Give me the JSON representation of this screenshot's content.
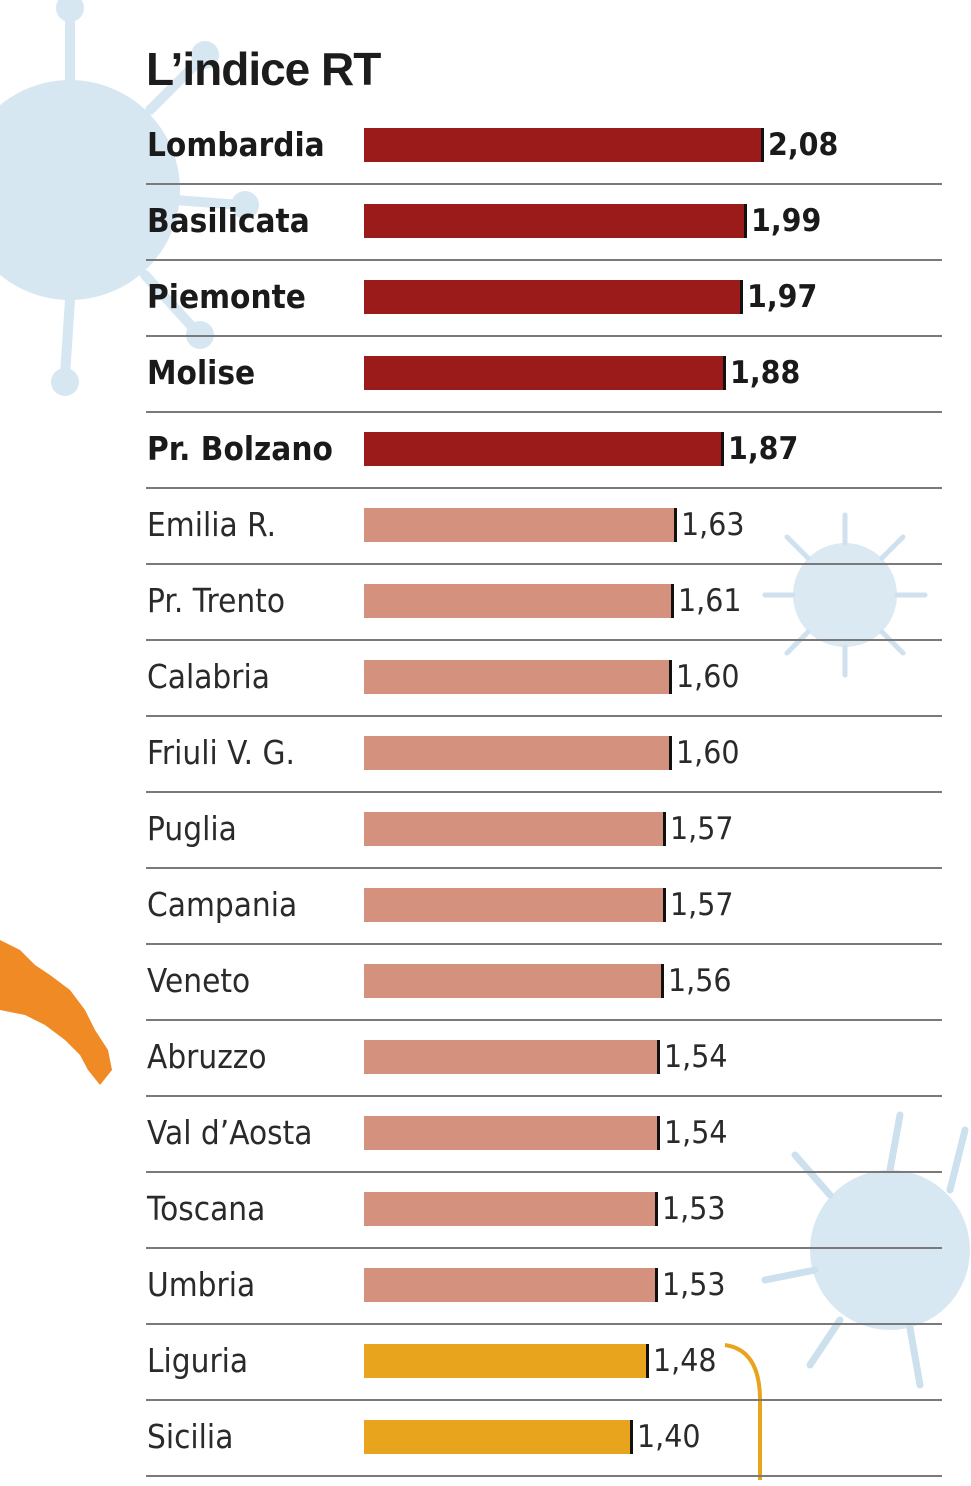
{
  "chart_data": {
    "type": "bar",
    "orientation": "horizontal",
    "title": "L’indice RT",
    "categories": [
      "Lombardia",
      "Basilicata",
      "Piemonte",
      "Molise",
      "Pr. Bolzano",
      "Emilia R.",
      "Pr. Trento",
      "Calabria",
      "Friuli V. G.",
      "Puglia",
      "Campania",
      "Veneto",
      "Abruzzo",
      "Val d’Aosta",
      "Toscana",
      "Umbria",
      "Liguria",
      "Sicilia"
    ],
    "values": [
      2.08,
      1.99,
      1.97,
      1.88,
      1.87,
      1.63,
      1.61,
      1.6,
      1.6,
      1.57,
      1.57,
      1.56,
      1.54,
      1.54,
      1.53,
      1.53,
      1.48,
      1.4
    ],
    "value_labels": [
      "2,08",
      "1,99",
      "1,97",
      "1,88",
      "1,87",
      "1,63",
      "1,61",
      "1,60",
      "1,60",
      "1,57",
      "1,57",
      "1,56",
      "1,54",
      "1,54",
      "1,53",
      "1,53",
      "1,48",
      "1,40"
    ],
    "bar_colors": [
      "#9b1b1b",
      "#9b1b1b",
      "#9b1b1b",
      "#9b1b1b",
      "#9b1b1b",
      "#d4917e",
      "#d4917e",
      "#d4917e",
      "#d4917e",
      "#d4917e",
      "#d4917e",
      "#d4917e",
      "#d4917e",
      "#d4917e",
      "#d4917e",
      "#d4917e",
      "#e8a41c",
      "#e8a41c"
    ],
    "emphasis": [
      "bold",
      "bold",
      "bold",
      "bold",
      "bold",
      "normal",
      "normal",
      "normal",
      "normal",
      "normal",
      "normal",
      "normal",
      "normal",
      "normal",
      "normal",
      "normal",
      "normal",
      "normal"
    ],
    "xlim": [
      0,
      2.08
    ],
    "grid": false,
    "legend": "none"
  },
  "colors": {
    "high": "#9b1b1b",
    "medium": "#d4917e",
    "low": "#e8a41c",
    "virus_decoration": "#cfe3f0",
    "italy_map": "#f08a24"
  },
  "decorations": [
    "virus-icon",
    "virus-icon",
    "virus-icon",
    "italy-map-fragment"
  ]
}
